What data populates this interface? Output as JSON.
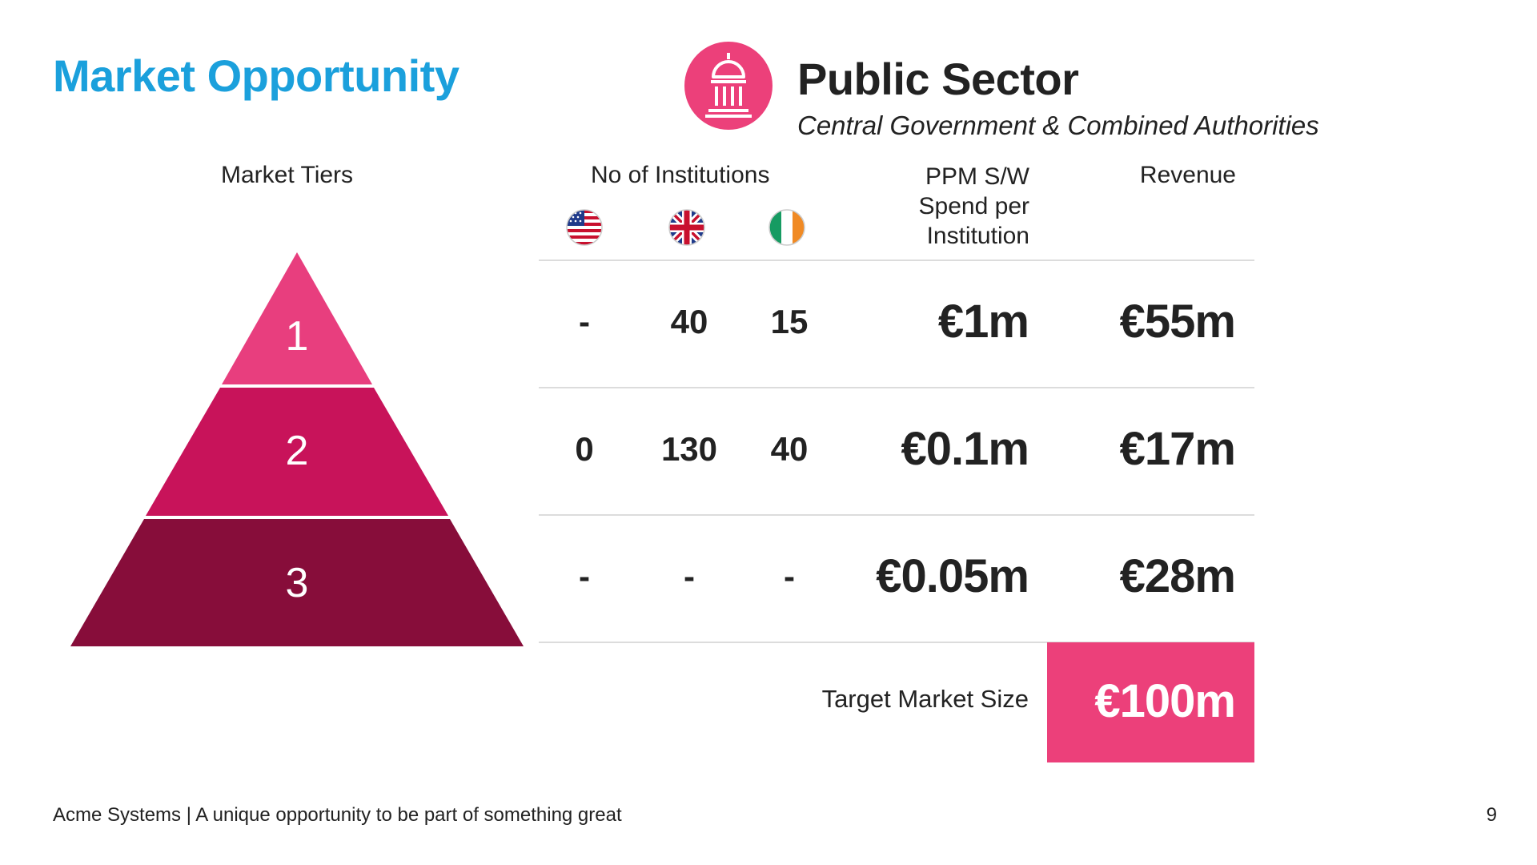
{
  "slide": {
    "title": "Market Opportunity",
    "sector": {
      "icon": "government-building-icon",
      "title": "Public Sector",
      "subtitle": "Central Government & Combined Authorities"
    },
    "headers": {
      "market_tiers": "Market Tiers",
      "institutions": "No of Institutions",
      "ppm_spend": "PPM S/W Spend per Institution",
      "revenue": "Revenue"
    },
    "flags": [
      {
        "icon": "us-flag-icon"
      },
      {
        "icon": "uk-flag-icon"
      },
      {
        "icon": "ireland-flag-icon"
      }
    ],
    "tiers": [
      {
        "label": "1",
        "us": "-",
        "uk": "40",
        "ie": "15",
        "ppm": "€1m",
        "revenue": "€55m",
        "color": "#E83E7E"
      },
      {
        "label": "2",
        "us": "0",
        "uk": "130",
        "ie": "40",
        "ppm": "€0.1m",
        "revenue": "€17m",
        "color": "#C8135A"
      },
      {
        "label": "3",
        "us": "-",
        "uk": "-",
        "ie": "-",
        "ppm": "€0.05m",
        "revenue": "€28m",
        "color": "#870D3A"
      }
    ],
    "total": {
      "label": "Target Market Size",
      "value": "€100m",
      "color": "#EC407A"
    },
    "footer": {
      "text": "Acme Systems | A unique opportunity to be part of something great",
      "page_number": "9"
    },
    "colors": {
      "title": "#1BA0DC",
      "accent": "#EC407A"
    }
  }
}
